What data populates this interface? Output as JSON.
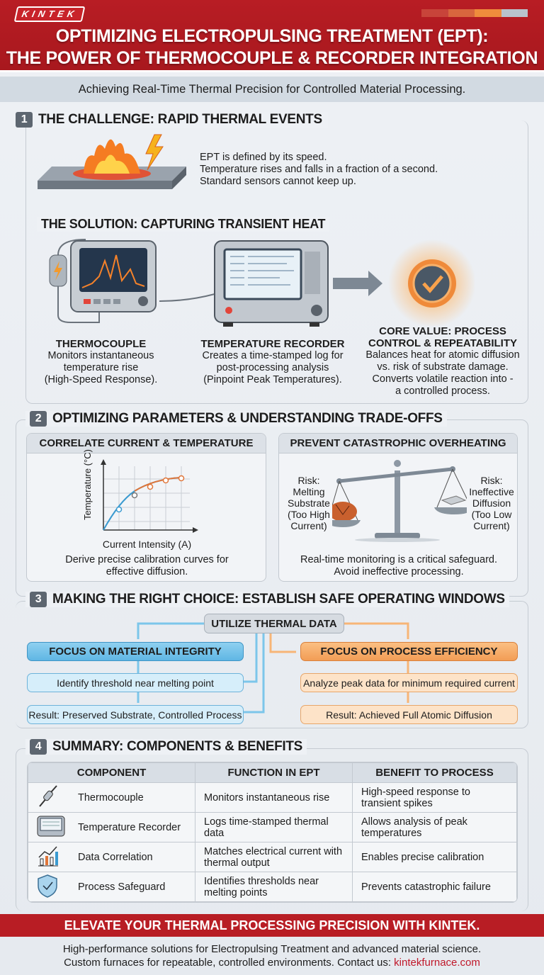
{
  "header": {
    "logo": "KINTEK",
    "title_line1": "OPTIMIZING ELECTROPULSING TREATMENT (EPT):",
    "title_line2": "THE POWER OF THERMOCOUPLE & RECORDER INTEGRATION",
    "subtitle": "Achieving Real-Time Thermal Precision for Controlled Material Processing.",
    "stripe_colors": [
      "#c8443a",
      "#d8663e",
      "#ef8c3c",
      "#b9c3cc"
    ]
  },
  "section1": {
    "number": "1",
    "title": "THE CHALLENGE: RAPID THERMAL EVENTS",
    "challenge_text": [
      "EPT is defined by its speed.",
      "Temperature rises and falls in a fraction of a second.",
      "Standard sensors cannot keep up."
    ],
    "solution_title": "THE SOLUTION: CAPTURING TRANSIENT HEAT",
    "items": [
      {
        "title": "THERMOCOUPLE",
        "lines": [
          "Monitors instantaneous",
          "temperature rise",
          "(High-Speed Response)."
        ]
      },
      {
        "title": "TEMPERATURE RECORDER",
        "lines": [
          "Creates a time-stamped log for",
          "post-processing analysis",
          "(Pinpoint Peak Temperatures)."
        ]
      },
      {
        "title_lines": [
          "CORE VALUE: PROCESS",
          "CONTROL & REPEATABILITY"
        ],
        "lines": [
          "Balances heat for atomic diffusion",
          "vs. risk of substrate damage.",
          "Converts volatile reaction into -",
          "a controlled process."
        ]
      }
    ]
  },
  "section2": {
    "number": "2",
    "title": "OPTIMIZING PARAMETERS & UNDERSTANDING TRADE-OFFS",
    "left": {
      "title": "CORRELATE CURRENT & TEMPERATURE",
      "ylabel": "Temperature (°C)",
      "xlabel": "Current Intensity (A)",
      "caption_lines": [
        "Derive precise calibration curves for",
        "effective diffusion."
      ]
    },
    "right": {
      "title": "PREVENT CATASTROPHIC OVERHEATING",
      "risk_left": [
        "Risk:",
        "Melting",
        "Substrate",
        "(Too High",
        "Current)"
      ],
      "risk_right": [
        "Risk:",
        "Ineffective",
        "Diffusion",
        "(Too Low",
        "Current)"
      ],
      "caption_lines": [
        "Real-time monitoring is a critical safeguard.",
        "Avoid ineffective processing."
      ]
    }
  },
  "section3": {
    "number": "3",
    "title": "MAKING THE RIGHT CHOICE: ESTABLISH SAFE OPERATING WINDOWS",
    "root": "UTILIZE THERMAL DATA",
    "left": [
      "FOCUS ON MATERIAL INTEGRITY",
      "Identify threshold near melting point",
      "Result: Preserved Substrate, Controlled Process"
    ],
    "right": [
      "FOCUS ON PROCESS EFFICIENCY",
      "Analyze peak data for minimum required current",
      "Result: Achieved Full Atomic Diffusion"
    ],
    "colors": {
      "blue": "#5fb6e4",
      "orange": "#f29d55"
    }
  },
  "section4": {
    "number": "4",
    "title": "SUMMARY: COMPONENTS & BENEFITS",
    "headers": [
      "COMPONENT",
      "FUNCTION IN EPT",
      "BENEFIT TO PROCESS"
    ],
    "rows": [
      {
        "icon": "thermocouple-icon",
        "component": "Thermocouple",
        "function": "Monitors instantaneous rise",
        "benefit": "High-speed response to transient spikes"
      },
      {
        "icon": "recorder-icon",
        "component": "Temperature Recorder",
        "function": "Logs time-stamped thermal data",
        "benefit": "Allows analysis of peak temperatures"
      },
      {
        "icon": "chart-icon",
        "component": "Data Correlation",
        "function": "Matches electrical current with thermal output",
        "benefit": "Enables precise calibration"
      },
      {
        "icon": "shield-check-icon",
        "component": "Process Safeguard",
        "function": "Identifies thresholds near melting points",
        "benefit": "Prevents catastrophic failure"
      }
    ]
  },
  "footer": {
    "banner": "ELEVATE YOUR THERMAL PROCESSING PRECISION WITH KINTEK.",
    "line1": "High-performance solutions for Electropulsing Treatment and advanced material science.",
    "line2": "Custom furnaces for repeatable, controlled environments. Contact us:",
    "link": "kintekfurnace.com"
  },
  "brand_color": "#b81d24"
}
